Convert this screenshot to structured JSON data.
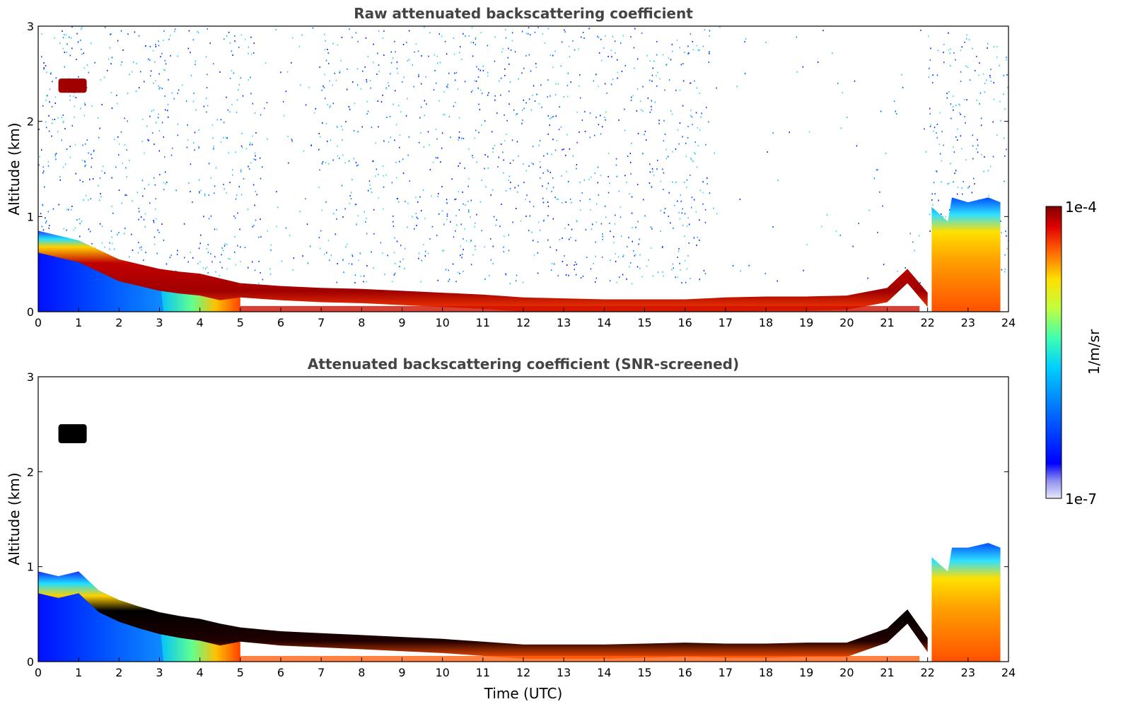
{
  "chart_data": [
    {
      "type": "heatmap",
      "title": "Raw attenuated backscattering coefficient",
      "xlabel": "",
      "ylabel": "Altitude (km)",
      "xlim": [
        0,
        24
      ],
      "ylim": [
        0,
        3
      ],
      "x_ticks": [
        "0",
        "1",
        "2",
        "3",
        "4",
        "5",
        "6",
        "7",
        "8",
        "9",
        "10",
        "11",
        "12",
        "13",
        "14",
        "15",
        "16",
        "17",
        "18",
        "19",
        "20",
        "21",
        "22",
        "23",
        "24"
      ],
      "y_ticks": [
        "0",
        "1",
        "2",
        "3"
      ],
      "grid": false,
      "layer_top_km": [
        [
          0,
          0.85
        ],
        [
          0.5,
          0.8
        ],
        [
          1,
          0.75
        ],
        [
          1.5,
          0.65
        ],
        [
          2,
          0.55
        ],
        [
          2.5,
          0.5
        ],
        [
          3,
          0.45
        ],
        [
          3.5,
          0.42
        ],
        [
          4,
          0.4
        ],
        [
          4.5,
          0.35
        ],
        [
          5,
          0.3
        ],
        [
          6,
          0.27
        ],
        [
          7,
          0.25
        ],
        [
          8,
          0.24
        ],
        [
          9,
          0.22
        ],
        [
          10,
          0.2
        ],
        [
          11,
          0.18
        ],
        [
          12,
          0.15
        ],
        [
          13,
          0.14
        ],
        [
          14,
          0.13
        ],
        [
          15,
          0.13
        ],
        [
          16,
          0.13
        ],
        [
          17,
          0.15
        ],
        [
          18,
          0.16
        ],
        [
          19,
          0.16
        ],
        [
          20,
          0.17
        ],
        [
          21,
          0.25
        ],
        [
          21.5,
          0.45
        ],
        [
          22,
          0.2
        ]
      ],
      "plume_top_km": [
        [
          22.1,
          1.1
        ],
        [
          22.5,
          0.95
        ],
        [
          22.6,
          1.2
        ],
        [
          23,
          1.15
        ],
        [
          23.5,
          1.2
        ],
        [
          23.8,
          1.15
        ]
      ],
      "elevated_layer": {
        "x": [
          0.5,
          1.2
        ],
        "y": [
          2.3,
          2.45
        ]
      },
      "colorbar": {
        "label": "1/m/sr",
        "min_label": "1e-7",
        "max_label": "1e-4",
        "scale": "log"
      }
    },
    {
      "type": "heatmap",
      "title": "Attenuated backscattering coefficient (SNR-screened)",
      "xlabel": "Time (UTC)",
      "ylabel": "Altitude (km)",
      "xlim": [
        0,
        24
      ],
      "ylim": [
        0,
        3
      ],
      "x_ticks": [
        "0",
        "1",
        "2",
        "3",
        "4",
        "5",
        "6",
        "7",
        "8",
        "9",
        "10",
        "11",
        "12",
        "13",
        "14",
        "15",
        "16",
        "17",
        "18",
        "19",
        "20",
        "21",
        "22",
        "23",
        "24"
      ],
      "y_ticks": [
        "0",
        "1",
        "2",
        "3"
      ],
      "grid": false,
      "layer_top_km": [
        [
          0,
          0.95
        ],
        [
          0.5,
          0.9
        ],
        [
          1,
          0.95
        ],
        [
          1.5,
          0.75
        ],
        [
          2,
          0.65
        ],
        [
          2.5,
          0.58
        ],
        [
          3,
          0.52
        ],
        [
          3.5,
          0.48
        ],
        [
          4,
          0.45
        ],
        [
          4.5,
          0.4
        ],
        [
          5,
          0.36
        ],
        [
          6,
          0.32
        ],
        [
          7,
          0.3
        ],
        [
          8,
          0.28
        ],
        [
          9,
          0.26
        ],
        [
          10,
          0.24
        ],
        [
          11,
          0.21
        ],
        [
          12,
          0.18
        ],
        [
          13,
          0.18
        ],
        [
          14,
          0.18
        ],
        [
          15,
          0.19
        ],
        [
          16,
          0.2
        ],
        [
          17,
          0.19
        ],
        [
          18,
          0.19
        ],
        [
          19,
          0.2
        ],
        [
          20,
          0.2
        ],
        [
          21,
          0.35
        ],
        [
          21.5,
          0.55
        ],
        [
          22,
          0.25
        ]
      ],
      "plume_top_km": [
        [
          22.1,
          1.1
        ],
        [
          22.5,
          0.95
        ],
        [
          22.6,
          1.2
        ],
        [
          23,
          1.2
        ],
        [
          23.5,
          1.25
        ],
        [
          23.8,
          1.2
        ]
      ],
      "elevated_layer": {
        "x": [
          0.5,
          1.2
        ],
        "y": [
          2.3,
          2.5
        ]
      }
    }
  ]
}
